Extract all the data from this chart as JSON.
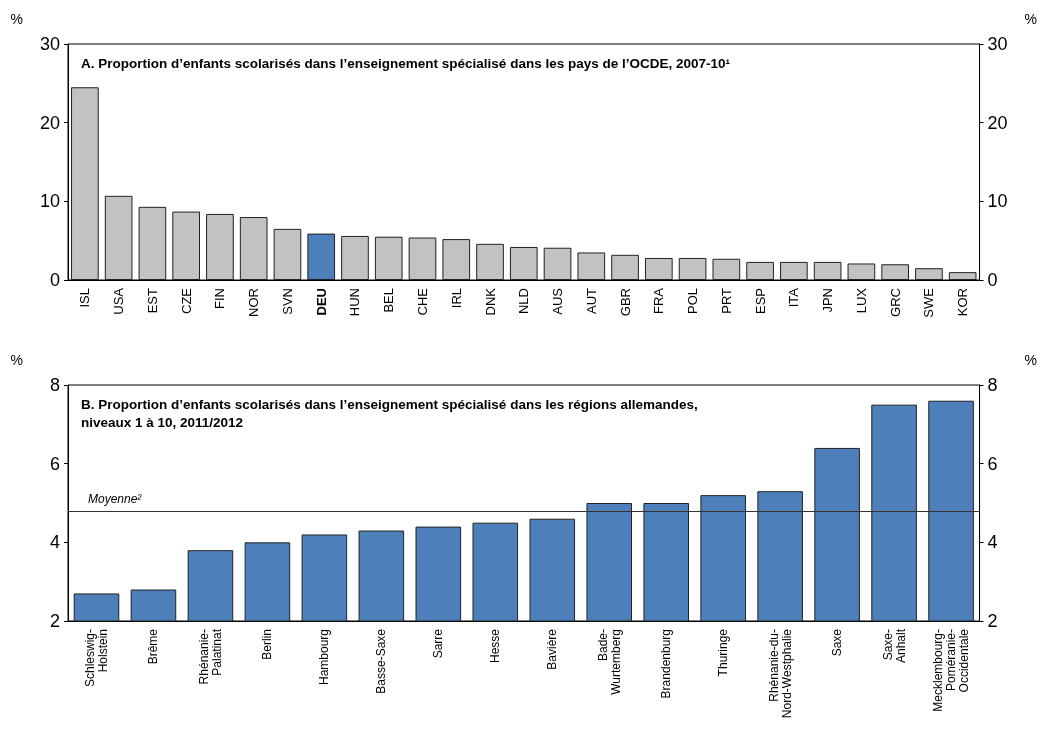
{
  "chart_data": [
    {
      "type": "bar",
      "title": "A. Proportion d’enfants scolarisés dans l’enseignement spécialisé dans les pays de l’OCDE, 2007-10¹",
      "ylabel": "%",
      "y2label": "%",
      "categories": [
        "ISL",
        "USA",
        "EST",
        "CZE",
        "FIN",
        "NOR",
        "SVN",
        "DEU",
        "HUN",
        "BEL",
        "CHE",
        "IRL",
        "DNK",
        "NLD",
        "AUS",
        "AUT",
        "GBR",
        "FRA",
        "POL",
        "PRT",
        "ESP",
        "ITA",
        "JPN",
        "LUX",
        "GRC",
        "SWE",
        "KOR"
      ],
      "values": [
        24.5,
        10.7,
        9.3,
        8.7,
        8.4,
        8.0,
        6.5,
        5.9,
        5.6,
        5.5,
        5.4,
        5.2,
        4.6,
        4.2,
        4.1,
        3.5,
        3.2,
        2.8,
        2.8,
        2.7,
        2.3,
        2.3,
        2.3,
        2.1,
        2.0,
        1.5,
        1.0
      ],
      "colors": [
        "#c1c2c1",
        "#c1c2c1",
        "#c1c2c1",
        "#c1c2c1",
        "#c1c2c1",
        "#c1c2c1",
        "#c1c2c1",
        "#4d80bb",
        "#c1c2c1",
        "#c1c2c1",
        "#c1c2c1",
        "#c1c2c1",
        "#c1c2c1",
        "#c1c2c1",
        "#c1c2c1",
        "#c1c2c1",
        "#c1c2c1",
        "#c1c2c1",
        "#c1c2c1",
        "#c1c2c1",
        "#c1c2c1",
        "#c1c2c1",
        "#c1c2c1",
        "#c1c2c1",
        "#c1c2c1",
        "#c1c2c1",
        "#c1c2c1"
      ],
      "ylim": [
        0,
        30
      ],
      "yticks": [
        0,
        10,
        20,
        30
      ],
      "y2lim": [
        0,
        30
      ],
      "y2ticks": [
        0,
        10,
        20,
        30
      ]
    },
    {
      "type": "bar",
      "title": "B. Proportion d’enfants scolarisés dans l’enseignement spécialisé dans les régions allemandes, niveaux 1 à 10, 2011/2012",
      "ylabel": "%",
      "y2label": "%",
      "categories": [
        "Schleswig-Holstein",
        "Brême",
        "Rhénanie-Palatinat",
        "Berlin",
        "Hambourg",
        "Basse-Saxe",
        "Sarre",
        "Hesse",
        "Bavière",
        "Bade-Wurtemberg",
        "Brandenburg",
        "Thuringe",
        "Rhénanie-du-Nord-Westphalie",
        "Saxe",
        "Saxe-Anhalt",
        "Mecklembourg-Poméranie-Occidentale"
      ],
      "values": [
        2.7,
        2.8,
        3.8,
        4.0,
        4.2,
        4.3,
        4.4,
        4.5,
        4.6,
        5.0,
        5.0,
        5.2,
        5.3,
        6.4,
        7.5,
        7.6
      ],
      "color": "#4d80bb",
      "ylim": [
        2,
        8
      ],
      "yticks": [
        2,
        4,
        6,
        8
      ],
      "y2lim": [
        2,
        8
      ],
      "y2ticks": [
        2,
        4,
        6,
        8
      ],
      "ref_lines": [
        {
          "axis": "y",
          "value": 4.8,
          "label": "Moyenne²"
        }
      ]
    }
  ]
}
